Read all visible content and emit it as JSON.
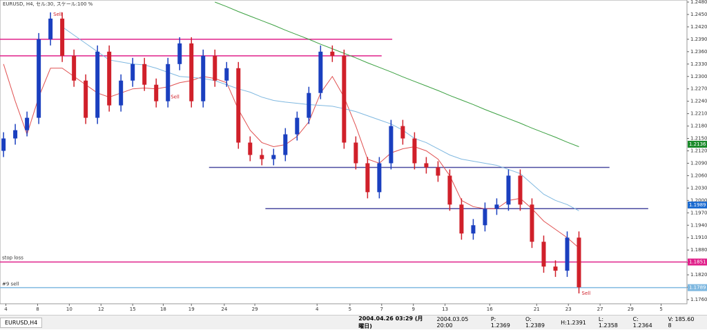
{
  "chart_data": {
    "type": "candlestick",
    "title": "EURUSD, H4, セル:30, スケール:100 %",
    "xlim": [
      -0.3,
      58.2
    ],
    "xticks": [
      {
        "value": 0.2,
        "label": "4"
      },
      {
        "value": 2.9,
        "label": "8"
      },
      {
        "value": 5.6,
        "label": "10"
      },
      {
        "value": 8.3,
        "label": "12"
      },
      {
        "value": 11,
        "label": "15"
      },
      {
        "value": 13.6,
        "label": "18"
      },
      {
        "value": 16,
        "label": "19"
      },
      {
        "value": 18.8,
        "label": "24"
      },
      {
        "value": 21.4,
        "label": "29"
      },
      {
        "value": 26.7,
        "label": "4"
      },
      {
        "value": 29.5,
        "label": "5"
      },
      {
        "value": 32.2,
        "label": "7"
      },
      {
        "value": 34.9,
        "label": "9"
      },
      {
        "value": 37.6,
        "label": "13"
      },
      {
        "value": 41.4,
        "label": "16"
      },
      {
        "value": 45.4,
        "label": "21"
      },
      {
        "value": 48.1,
        "label": "23"
      },
      {
        "value": 50.8,
        "label": "27"
      },
      {
        "value": 53.4,
        "label": "29"
      },
      {
        "value": 56,
        "label": "5"
      }
    ],
    "ylim": [
      1.176,
      1.248
    ],
    "yticks": [
      {
        "value": 1.248,
        "label": "1.2480"
      },
      {
        "value": 1.245,
        "label": "1.2450"
      },
      {
        "value": 1.242,
        "label": "1.2420"
      },
      {
        "value": 1.239,
        "label": "1.2390"
      },
      {
        "value": 1.236,
        "label": "1.2360"
      },
      {
        "value": 1.233,
        "label": "1.2330"
      },
      {
        "value": 1.23,
        "label": "1.2300"
      },
      {
        "value": 1.227,
        "label": "1.2270"
      },
      {
        "value": 1.224,
        "label": "1.2240"
      },
      {
        "value": 1.221,
        "label": "1.2210"
      },
      {
        "value": 1.218,
        "label": "1.2180"
      },
      {
        "value": 1.215,
        "label": "1.2150"
      },
      {
        "value": 1.212,
        "label": "1.2120"
      },
      {
        "value": 1.209,
        "label": "1.2090"
      },
      {
        "value": 1.206,
        "label": "1.2060"
      },
      {
        "value": 1.203,
        "label": "1.2030"
      },
      {
        "value": 1.2,
        "label": "1.2000"
      },
      {
        "value": 1.197,
        "label": "1.1970"
      },
      {
        "value": 1.194,
        "label": "1.1940"
      },
      {
        "value": 1.191,
        "label": "1.1910"
      },
      {
        "value": 1.188,
        "label": "1.1880"
      },
      {
        "value": 1.185,
        "label": "1.1850"
      },
      {
        "value": 1.182,
        "label": "1.1820"
      },
      {
        "value": 1.179,
        "label": "1.1790"
      },
      {
        "value": 1.176,
        "label": "1.1760"
      }
    ],
    "up_color": "#1a3fbf",
    "down_color": "#d0202a",
    "open": [
      1.212,
      1.215,
      1.217,
      1.22,
      1.239,
      1.244,
      1.235,
      1.229,
      1.22,
      1.236,
      1.223,
      1.229,
      1.233,
      1.228,
      1.224,
      1.233,
      1.238,
      1.224,
      1.235,
      1.229,
      1.232,
      1.214,
      1.211,
      1.21,
      1.211,
      1.216,
      1.22,
      1.226,
      1.236,
      1.235,
      1.214,
      1.209,
      1.202,
      1.209,
      1.218,
      1.215,
      1.209,
      1.208,
      1.206,
      1.199,
      1.192,
      1.194,
      1.198,
      1.199,
      1.206,
      1.199,
      1.19,
      1.184,
      1.183,
      1.191
    ],
    "high": [
      1.2165,
      1.2185,
      1.2215,
      1.2405,
      1.2455,
      1.2455,
      1.2365,
      1.2305,
      1.2375,
      1.2375,
      1.2305,
      1.2345,
      1.2345,
      1.2295,
      1.2345,
      1.2395,
      1.2395,
      1.2365,
      1.2365,
      1.2335,
      1.2335,
      1.2155,
      1.2125,
      1.2125,
      1.2175,
      1.2215,
      1.2275,
      1.2375,
      1.2375,
      1.2365,
      1.2155,
      1.2105,
      1.2105,
      1.2195,
      1.2195,
      1.2165,
      1.2105,
      1.2095,
      1.2075,
      1.2005,
      1.1955,
      1.1995,
      1.2005,
      1.2075,
      1.2075,
      1.2005,
      1.1915,
      1.1855,
      1.1925,
      1.1925
    ],
    "low": [
      1.2105,
      1.2135,
      1.2155,
      1.2185,
      1.2375,
      1.2335,
      1.2275,
      1.2185,
      1.2185,
      1.2215,
      1.2215,
      1.2275,
      1.2265,
      1.2225,
      1.2225,
      1.2315,
      1.2225,
      1.2225,
      1.2275,
      1.2275,
      1.2125,
      1.2095,
      1.2085,
      1.2085,
      1.2095,
      1.2145,
      1.2185,
      1.2245,
      1.2335,
      1.2125,
      1.2075,
      1.2005,
      1.2005,
      1.2075,
      1.2135,
      1.2075,
      1.2065,
      1.2045,
      1.1975,
      1.1905,
      1.1905,
      1.1925,
      1.1965,
      1.1975,
      1.1975,
      1.1885,
      1.1825,
      1.1815,
      1.1815,
      1.1775
    ],
    "close": [
      1.215,
      1.217,
      1.22,
      1.239,
      1.244,
      1.235,
      1.229,
      1.22,
      1.236,
      1.223,
      1.229,
      1.233,
      1.228,
      1.224,
      1.233,
      1.238,
      1.224,
      1.235,
      1.229,
      1.232,
      1.214,
      1.211,
      1.21,
      1.211,
      1.216,
      1.22,
      1.226,
      1.236,
      1.235,
      1.214,
      1.209,
      1.202,
      1.209,
      1.218,
      1.215,
      1.209,
      1.208,
      1.206,
      1.199,
      1.192,
      1.194,
      1.198,
      1.199,
      1.206,
      1.199,
      1.19,
      1.184,
      1.183,
      1.191,
      1.179
    ],
    "series": [
      {
        "color": "#e05050",
        "values": [
          1.233,
          1.224,
          1.216,
          1.225,
          1.232,
          1.232,
          1.23,
          1.228,
          1.226,
          1.225,
          1.226,
          1.227,
          1.2272,
          1.227,
          1.2275,
          1.2285,
          1.229,
          1.23,
          1.2295,
          1.2285,
          1.222,
          1.217,
          1.214,
          1.213,
          1.2135,
          1.2155,
          1.219,
          1.226,
          1.23,
          1.225,
          1.218,
          1.21,
          1.209,
          1.2115,
          1.2125,
          1.213,
          1.212,
          1.21,
          1.206,
          1.2,
          1.1985,
          1.198,
          1.198,
          1.2,
          1.2005,
          1.198,
          1.195,
          1.193,
          1.191,
          1.1885
        ]
      },
      {
        "color": "#7fb8e0",
        "values": [
          null,
          null,
          null,
          null,
          null,
          1.242,
          1.24,
          1.238,
          1.236,
          1.234,
          1.2335,
          1.233,
          1.2328,
          1.232,
          1.231,
          1.23,
          1.2298,
          1.2295,
          1.229,
          1.228,
          1.227,
          1.2262,
          1.225,
          1.2242,
          1.2238,
          1.2235,
          1.2232,
          1.223,
          1.2228,
          1.2222,
          1.2215,
          1.2205,
          1.2195,
          1.2185,
          1.217,
          1.215,
          1.214,
          1.2125,
          1.211,
          1.21,
          1.2095,
          1.209,
          1.2085,
          1.2075,
          1.2065,
          1.204,
          1.2015,
          1.2,
          1.199,
          1.1975
        ]
      },
      {
        "color": "#3aa040",
        "values": [
          null,
          null,
          null,
          null,
          null,
          null,
          null,
          null,
          null,
          null,
          null,
          null,
          null,
          null,
          null,
          null,
          null,
          null,
          1.248,
          1.2469,
          1.2457,
          1.2446,
          1.2435,
          1.2424,
          1.2412,
          1.2401,
          1.239,
          1.2378,
          1.2367,
          1.2356,
          1.2345,
          1.2333,
          1.2322,
          1.2311,
          1.2299,
          1.2288,
          1.2277,
          1.2266,
          1.2254,
          1.2243,
          1.2232,
          1.222,
          1.2209,
          1.2198,
          1.2187,
          1.2175,
          1.2164,
          1.2153,
          1.2141,
          1.213
        ]
      }
    ],
    "levels": [
      {
        "price": 1.239,
        "start": -0.3,
        "end": 33.1,
        "color": "#e0208a"
      },
      {
        "price": 1.235,
        "start": -0.3,
        "end": 32.2,
        "color": "#e0208a"
      },
      {
        "price": 1.208,
        "start": 17.5,
        "end": 51.6,
        "color": "#4a4aa0"
      },
      {
        "price": 1.198,
        "start": 22.3,
        "end": 54.9,
        "color": "#4a4aa0"
      },
      {
        "price": 1.1851,
        "start": -0.3,
        "end": 58.2,
        "color": "#e0208a"
      },
      {
        "price": 1.1789,
        "start": -0.3,
        "end": 58.2,
        "color": "#7fb8e0"
      }
    ],
    "level_labels": [
      "stop loss",
      "#9 sell"
    ],
    "annotations": [
      "Sell",
      "Sell",
      "Sell"
    ],
    "price_labels": [
      {
        "value": 1.2136,
        "label": "1.2136",
        "color": "#1a8a2a"
      },
      {
        "value": 1.1989,
        "label": "1.1989",
        "color": "#1a6ad0"
      },
      {
        "value": 1.1851,
        "label": "1.1851",
        "color": "#e0208a"
      },
      {
        "value": 1.1789,
        "label": "1.1789",
        "color": "#7fb8e0"
      }
    ]
  },
  "status_bar": {
    "tab": "EURUSD,H4",
    "time": "2004.04.26 03:29 (月曜日)",
    "bar_time": "2004.03.05 20:00",
    "p": "P: 1.2369",
    "o": "O: 1.2389",
    "h": "H:1.2391",
    "l": "L: 1.2358",
    "c": "C: 1.2364",
    "v": "V: 185.60 8"
  }
}
